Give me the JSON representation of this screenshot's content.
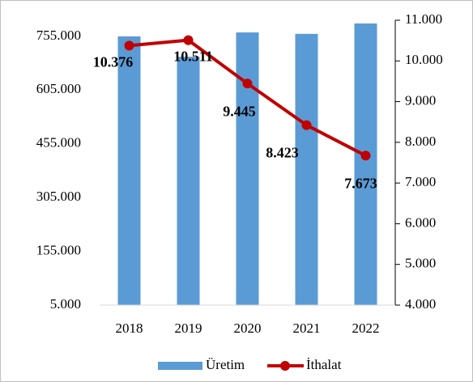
{
  "chart_data": {
    "type": "bar_line",
    "categories": [
      "2018",
      "2019",
      "2020",
      "2021",
      "2022"
    ],
    "series": [
      {
        "name": "Üretim",
        "type": "bar",
        "color": "#5b9bd5",
        "values": [
          755000,
          698000,
          766000,
          762000,
          791000
        ]
      },
      {
        "name": "İthalat",
        "type": "line",
        "axis": "y2",
        "color": "#c00000",
        "values": [
          10376,
          10511,
          9445,
          8423,
          7673
        ],
        "value_labels": [
          "10.376",
          "10.511",
          "9.445",
          "8.423",
          "7.673"
        ]
      }
    ],
    "ylim": [
      5000,
      800000
    ],
    "yticks": [
      {
        "value": 5000,
        "label": "5.000"
      },
      {
        "value": 155000,
        "label": "155.000"
      },
      {
        "value": 305000,
        "label": "305.000"
      },
      {
        "value": 455000,
        "label": "455.000"
      },
      {
        "value": 605000,
        "label": "605.000"
      },
      {
        "value": 755000,
        "label": "755.000"
      }
    ],
    "y2lim": [
      4000,
      11000
    ],
    "y2ticks": [
      {
        "value": 4000,
        "label": "4.000"
      },
      {
        "value": 5000,
        "label": "5.000"
      },
      {
        "value": 6000,
        "label": "6.000"
      },
      {
        "value": 7000,
        "label": "7.000"
      },
      {
        "value": 8000,
        "label": "8.000"
      },
      {
        "value": 9000,
        "label": "9.000"
      },
      {
        "value": 10000,
        "label": "10.000"
      },
      {
        "value": 11000,
        "label": "11.000"
      }
    ],
    "legend": "bottom"
  }
}
